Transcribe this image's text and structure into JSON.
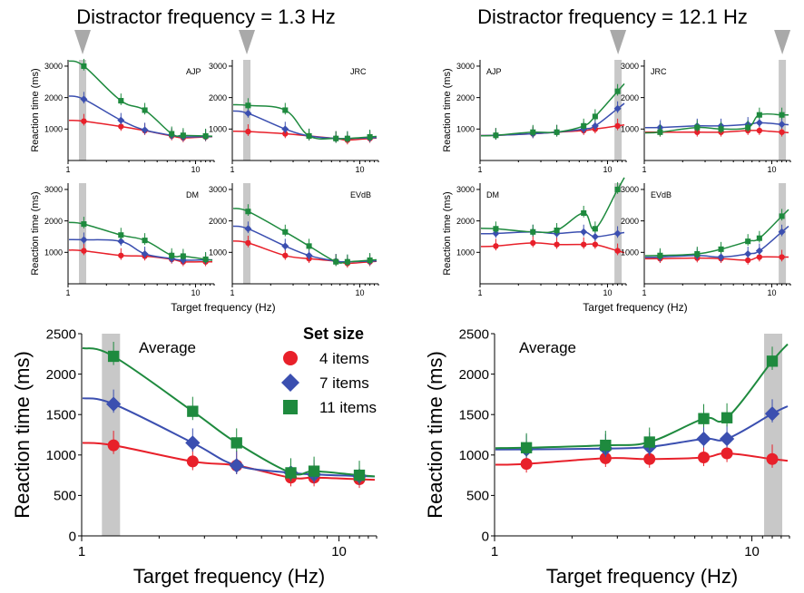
{
  "headers": {
    "left": "Distractor frequency = 1.3 Hz",
    "right": "Distractor frequency = 12.1 Hz"
  },
  "colors": {
    "red": "#e8202a",
    "blue": "#3b4fb0",
    "green": "#1e8a3e",
    "shade": "#c8c8c8",
    "marker": "#a9a9a9"
  },
  "legend": {
    "title": "Set size",
    "items": [
      {
        "label": "4 items",
        "series": "4 items",
        "color": "#e8202a",
        "shape": "circle"
      },
      {
        "label": "7 items",
        "series": "7 items",
        "color": "#3b4fb0",
        "shape": "diamond"
      },
      {
        "label": "11 items",
        "series": "11 items",
        "color": "#1e8a3e",
        "shape": "square"
      }
    ]
  },
  "small_axes": {
    "ylabel": "Reaction time (ms)",
    "xlabel": "Target frequency (Hz)",
    "yticks": [
      1000,
      2000,
      3000
    ],
    "xticks": [
      "1",
      "10"
    ]
  },
  "large_axes": {
    "ylabel": "Reaction time (ms)",
    "xlabel": "Target frequency (Hz)",
    "yticks": [
      "0",
      "500",
      "1000",
      "1500",
      "2000",
      "2500"
    ],
    "xticks": [
      "1",
      "10"
    ]
  },
  "chart_data": [
    {
      "id": "ajp-13",
      "type": "scatter",
      "title": "AJP",
      "distractor_hz": 1.3,
      "xlim": [
        1,
        14
      ],
      "ylim": [
        0,
        3200
      ],
      "xscale": "log",
      "x": [
        1.33,
        2.6,
        4,
        6.5,
        8,
        12
      ],
      "series": [
        {
          "name": "4 items",
          "values": [
            1250,
            1080,
            950,
            780,
            720,
            750
          ]
        },
        {
          "name": "7 items",
          "values": [
            1950,
            1280,
            970,
            800,
            750,
            760
          ]
        },
        {
          "name": "11 items",
          "values": [
            3000,
            1900,
            1600,
            850,
            800,
            780
          ]
        }
      ]
    },
    {
      "id": "jrc-13",
      "type": "scatter",
      "title": "JRC",
      "distractor_hz": 1.3,
      "xlim": [
        1,
        14
      ],
      "ylim": [
        0,
        3200
      ],
      "xscale": "log",
      "x": [
        1.33,
        2.6,
        4,
        6.5,
        8,
        12
      ],
      "series": [
        {
          "name": "4 items",
          "values": [
            920,
            850,
            780,
            700,
            650,
            700
          ]
        },
        {
          "name": "7 items",
          "values": [
            1500,
            1000,
            780,
            700,
            700,
            720
          ]
        },
        {
          "name": "11 items",
          "values": [
            1750,
            1600,
            780,
            700,
            700,
            750
          ]
        }
      ]
    },
    {
      "id": "dm-13",
      "type": "scatter",
      "title": "DM",
      "distractor_hz": 1.3,
      "xlim": [
        1,
        14
      ],
      "ylim": [
        0,
        3200
      ],
      "xscale": "log",
      "x": [
        1.33,
        2.6,
        4,
        6.5,
        8,
        12
      ],
      "series": [
        {
          "name": "4 items",
          "values": [
            1050,
            900,
            880,
            780,
            700,
            700
          ]
        },
        {
          "name": "7 items",
          "values": [
            1400,
            1350,
            950,
            800,
            750,
            760
          ]
        },
        {
          "name": "11 items",
          "values": [
            1900,
            1550,
            1380,
            900,
            880,
            780
          ]
        }
      ]
    },
    {
      "id": "evdb-13",
      "type": "scatter",
      "title": "EVdB",
      "distractor_hz": 1.3,
      "xlim": [
        1,
        14
      ],
      "ylim": [
        0,
        3200
      ],
      "xscale": "log",
      "x": [
        1.33,
        2.6,
        4,
        6.5,
        8,
        12
      ],
      "series": [
        {
          "name": "4 items",
          "values": [
            1300,
            900,
            800,
            720,
            650,
            700
          ]
        },
        {
          "name": "7 items",
          "values": [
            1750,
            1200,
            900,
            720,
            700,
            720
          ]
        },
        {
          "name": "11 items",
          "values": [
            2300,
            1650,
            1200,
            700,
            700,
            750
          ]
        }
      ]
    },
    {
      "id": "ajp-121",
      "type": "scatter",
      "title": "AJP",
      "distractor_hz": 12.1,
      "xlim": [
        1,
        14
      ],
      "ylim": [
        0,
        3200
      ],
      "xscale": "log",
      "x": [
        1.33,
        2.6,
        4,
        6.5,
        8,
        12
      ],
      "series": [
        {
          "name": "4 items",
          "values": [
            800,
            850,
            900,
            950,
            1000,
            1100
          ]
        },
        {
          "name": "7 items",
          "values": [
            800,
            850,
            900,
            1000,
            1100,
            1650
          ]
        },
        {
          "name": "11 items",
          "values": [
            800,
            900,
            900,
            1100,
            1400,
            2200
          ]
        }
      ]
    },
    {
      "id": "jrc-121",
      "type": "scatter",
      "title": "JRC",
      "distractor_hz": 12.1,
      "xlim": [
        1,
        14
      ],
      "ylim": [
        0,
        3200
      ],
      "xscale": "log",
      "x": [
        1.33,
        2.6,
        4,
        6.5,
        8,
        12
      ],
      "series": [
        {
          "name": "4 items",
          "values": [
            900,
            900,
            900,
            950,
            950,
            900
          ]
        },
        {
          "name": "7 items",
          "values": [
            1050,
            1100,
            1100,
            1150,
            1200,
            1150
          ]
        },
        {
          "name": "11 items",
          "values": [
            900,
            1050,
            1000,
            1050,
            1450,
            1450
          ]
        }
      ]
    },
    {
      "id": "dm-121",
      "type": "scatter",
      "title": "DM",
      "distractor_hz": 12.1,
      "xlim": [
        1,
        14
      ],
      "ylim": [
        0,
        3200
      ],
      "xscale": "log",
      "x": [
        1.33,
        2.6,
        4,
        6.5,
        8,
        12
      ],
      "series": [
        {
          "name": "4 items",
          "values": [
            1200,
            1300,
            1250,
            1250,
            1250,
            1050
          ]
        },
        {
          "name": "7 items",
          "values": [
            1600,
            1650,
            1600,
            1650,
            1500,
            1600
          ]
        },
        {
          "name": "11 items",
          "values": [
            1750,
            1650,
            1700,
            2250,
            1750,
            3000
          ]
        }
      ]
    },
    {
      "id": "evdb-121",
      "type": "scatter",
      "title": "EVdB",
      "distractor_hz": 12.1,
      "xlim": [
        1,
        14
      ],
      "ylim": [
        0,
        3200
      ],
      "xscale": "log",
      "x": [
        1.33,
        2.6,
        4,
        6.5,
        8,
        12
      ],
      "series": [
        {
          "name": "4 items",
          "values": [
            800,
            820,
            800,
            750,
            850,
            850
          ]
        },
        {
          "name": "7 items",
          "values": [
            850,
            900,
            850,
            950,
            1050,
            1650
          ]
        },
        {
          "name": "11 items",
          "values": [
            900,
            950,
            1100,
            1350,
            1450,
            2150
          ]
        }
      ]
    },
    {
      "id": "avg-13",
      "type": "scatter",
      "title": "Average",
      "distractor_hz": 1.3,
      "xlim": [
        1,
        14
      ],
      "ylim": [
        0,
        2500
      ],
      "xscale": "log",
      "x": [
        1.33,
        2.7,
        4,
        6.5,
        8,
        12
      ],
      "series": [
        {
          "name": "4 items",
          "values": [
            1120,
            920,
            870,
            720,
            720,
            700
          ]
        },
        {
          "name": "7 items",
          "values": [
            1630,
            1150,
            870,
            780,
            760,
            740
          ]
        },
        {
          "name": "11 items",
          "values": [
            2220,
            1540,
            1150,
            780,
            800,
            750
          ]
        }
      ]
    },
    {
      "id": "avg-121",
      "type": "scatter",
      "title": "Average",
      "distractor_hz": 12.1,
      "xlim": [
        1,
        14
      ],
      "ylim": [
        0,
        2500
      ],
      "xscale": "log",
      "x": [
        1.33,
        2.7,
        4,
        6.5,
        8,
        12
      ],
      "series": [
        {
          "name": "4 items",
          "values": [
            890,
            960,
            950,
            970,
            1020,
            950
          ]
        },
        {
          "name": "7 items",
          "values": [
            1070,
            1080,
            1100,
            1200,
            1200,
            1510
          ]
        },
        {
          "name": "11 items",
          "values": [
            1090,
            1120,
            1160,
            1450,
            1460,
            2160
          ]
        }
      ]
    }
  ]
}
